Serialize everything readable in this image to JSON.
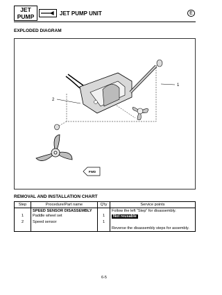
{
  "header": {
    "badge": [
      "JET",
      "PUMP"
    ],
    "title": "JET PUMP UNIT",
    "lang": "E"
  },
  "section_title": "EXPLODED DIAGRAM",
  "diagram": {
    "callouts": [
      "1",
      "2"
    ],
    "arrow_label": "FWD"
  },
  "chart_title": "REMOVAL AND INSTALLATION CHART",
  "table": {
    "columns": [
      "Step",
      "Procedure/Part name",
      "Q'ty",
      "Service points"
    ],
    "rows": [
      {
        "part": "SPEED SENSOR DISASSEMBLY",
        "service": "Follow the left “Step” for disassembly."
      },
      {
        "step": 1,
        "part": "Paddle wheel set",
        "qty": 1,
        "service": "Not reusable"
      },
      {
        "step": 2,
        "part": "Speed sensor",
        "qty": 1
      }
    ],
    "note": "Reverse the disassembly steps for assembly."
  },
  "page_number": "6-5"
}
